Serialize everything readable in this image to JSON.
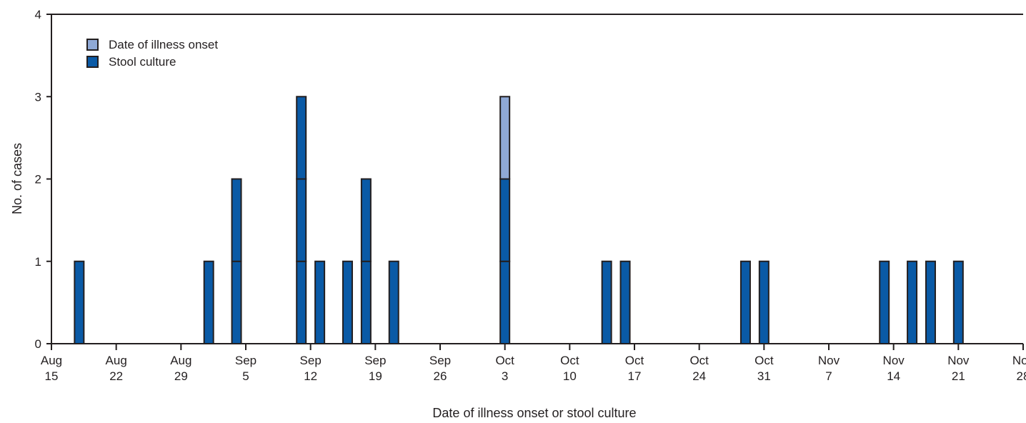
{
  "chart_data": {
    "type": "bar",
    "stacked": true,
    "xlabel": "Date of illness onset or stool culture",
    "ylabel": "No. of cases",
    "ylim": [
      0,
      4
    ],
    "yticks": [
      0,
      1,
      2,
      3,
      4
    ],
    "xlim": [
      "Aug 15",
      "Nov 28"
    ],
    "xticks": [
      {
        "date": "Aug 15",
        "line1": "Aug",
        "line2": "15"
      },
      {
        "date": "Aug 22",
        "line1": "Aug",
        "line2": "22"
      },
      {
        "date": "Aug 29",
        "line1": "Aug",
        "line2": "29"
      },
      {
        "date": "Sep 5",
        "line1": "Sep",
        "line2": "5"
      },
      {
        "date": "Sep 12",
        "line1": "Sep",
        "line2": "12"
      },
      {
        "date": "Sep 19",
        "line1": "Sep",
        "line2": "19"
      },
      {
        "date": "Sep 26",
        "line1": "Sep",
        "line2": "26"
      },
      {
        "date": "Oct 3",
        "line1": "Oct",
        "line2": "3"
      },
      {
        "date": "Oct 10",
        "line1": "Oct",
        "line2": "10"
      },
      {
        "date": "Oct 17",
        "line1": "Oct",
        "line2": "17"
      },
      {
        "date": "Oct 24",
        "line1": "Oct",
        "line2": "24"
      },
      {
        "date": "Oct 31",
        "line1": "Oct",
        "line2": "31"
      },
      {
        "date": "Nov 7",
        "line1": "Nov",
        "line2": "7"
      },
      {
        "date": "Nov 14",
        "line1": "Nov",
        "line2": "14"
      },
      {
        "date": "Nov 21",
        "line1": "Nov",
        "line2": "21"
      },
      {
        "date": "Nov 28",
        "line1": "Nov",
        "line2": "28"
      }
    ],
    "legend_position": "top-left",
    "series": [
      {
        "name": "Date of illness onset",
        "color": "#8fa9d6"
      },
      {
        "name": "Stool culture",
        "color": "#0a5aa6"
      }
    ],
    "bars": [
      {
        "date": "Aug 18",
        "stool_culture": 1,
        "illness_onset": 0
      },
      {
        "date": "Sep 1",
        "stool_culture": 1,
        "illness_onset": 0
      },
      {
        "date": "Sep 4",
        "stool_culture": 2,
        "illness_onset": 0
      },
      {
        "date": "Sep 11",
        "stool_culture": 3,
        "illness_onset": 0
      },
      {
        "date": "Sep 13",
        "stool_culture": 1,
        "illness_onset": 0
      },
      {
        "date": "Sep 16",
        "stool_culture": 1,
        "illness_onset": 0
      },
      {
        "date": "Sep 18",
        "stool_culture": 2,
        "illness_onset": 0
      },
      {
        "date": "Sep 21",
        "stool_culture": 1,
        "illness_onset": 0
      },
      {
        "date": "Oct 3",
        "stool_culture": 2,
        "illness_onset": 1
      },
      {
        "date": "Oct 14",
        "stool_culture": 1,
        "illness_onset": 0
      },
      {
        "date": "Oct 16",
        "stool_culture": 1,
        "illness_onset": 0
      },
      {
        "date": "Oct 29",
        "stool_culture": 1,
        "illness_onset": 0
      },
      {
        "date": "Oct 31",
        "stool_culture": 1,
        "illness_onset": 0
      },
      {
        "date": "Nov 13",
        "stool_culture": 1,
        "illness_onset": 0
      },
      {
        "date": "Nov 16",
        "stool_culture": 1,
        "illness_onset": 0
      },
      {
        "date": "Nov 18",
        "stool_culture": 1,
        "illness_onset": 0
      },
      {
        "date": "Nov 21",
        "stool_culture": 1,
        "illness_onset": 0
      }
    ]
  }
}
